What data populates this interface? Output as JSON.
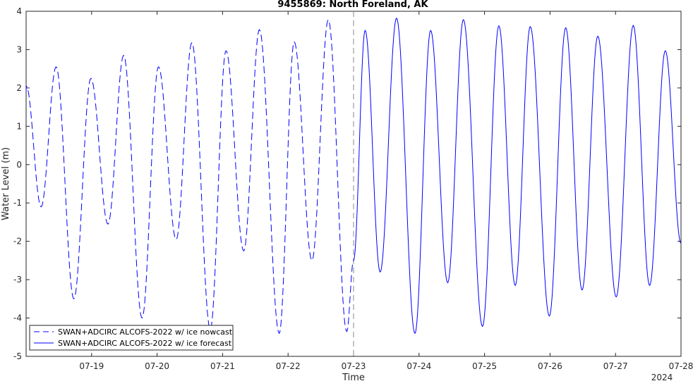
{
  "chart_data": {
    "type": "line",
    "title": "9455869: North Foreland, AK",
    "xlabel": "Time",
    "ylabel": "Water Level (m)",
    "year_label": "2024",
    "xlim": [
      "2024-07-18 00:00",
      "2024-07-28 00:00"
    ],
    "ylim": [
      -5,
      4
    ],
    "x_ticks": [
      "07-19",
      "07-20",
      "07-21",
      "07-22",
      "07-23",
      "07-24",
      "07-25",
      "07-26",
      "07-27",
      "07-28"
    ],
    "y_ticks": [
      "-5",
      "-4",
      "-3",
      "-2",
      "-1",
      "0",
      "1",
      "2",
      "3",
      "4"
    ],
    "grid": false,
    "forecast_start": "2024-07-23 00:00",
    "legend_position": "bottom-left",
    "series": [
      {
        "name": "SWAN+ADCIRC ALCOFS-2022 w/ ice nowcast",
        "style": "dashed",
        "color": "#0000ff",
        "extrema": [
          [
            "2024-07-18 00:00",
            1.9
          ],
          [
            "2024-07-18 00:03",
            2.05
          ],
          [
            "2024-07-18 05:30",
            -1.1
          ],
          [
            "2024-07-18 11:00",
            2.55
          ],
          [
            "2024-07-18 17:30",
            -3.5
          ],
          [
            "2024-07-18 23:45",
            2.25
          ],
          [
            "2024-07-19 06:00",
            -1.55
          ],
          [
            "2024-07-19 11:45",
            2.85
          ],
          [
            "2024-07-19 18:30",
            -4.0
          ],
          [
            "2024-07-20 00:30",
            2.55
          ],
          [
            "2024-07-20 07:00",
            -1.95
          ],
          [
            "2024-07-20 12:45",
            3.18
          ],
          [
            "2024-07-20 19:30",
            -4.3
          ],
          [
            "2024-07-21 01:15",
            2.97
          ],
          [
            "2024-07-21 07:45",
            -2.25
          ],
          [
            "2024-07-21 13:30",
            3.52
          ],
          [
            "2024-07-21 20:45",
            -4.4
          ],
          [
            "2024-07-22 02:15",
            3.2
          ],
          [
            "2024-07-22 08:45",
            -2.5
          ],
          [
            "2024-07-22 14:45",
            3.78
          ],
          [
            "2024-07-22 21:30",
            -4.35
          ],
          [
            "2024-07-23 00:00",
            -2.5
          ]
        ]
      },
      {
        "name": "SWAN+ADCIRC ALCOFS-2022 w/ ice forecast",
        "style": "solid",
        "color": "#0000ff",
        "extrema": [
          [
            "2024-07-23 00:00",
            -2.5
          ],
          [
            "2024-07-23 04:15",
            3.5
          ],
          [
            "2024-07-23 09:45",
            -2.8
          ],
          [
            "2024-07-23 15:45",
            3.82
          ],
          [
            "2024-07-23 22:30",
            -4.4
          ],
          [
            "2024-07-24 04:15",
            3.5
          ],
          [
            "2024-07-24 10:30",
            -3.08
          ],
          [
            "2024-07-24 16:15",
            3.78
          ],
          [
            "2024-07-24 23:15",
            -4.22
          ],
          [
            "2024-07-25 05:15",
            3.62
          ],
          [
            "2024-07-25 11:15",
            -3.15
          ],
          [
            "2024-07-25 16:45",
            3.6
          ],
          [
            "2024-07-25 23:45",
            -3.95
          ],
          [
            "2024-07-26 05:45",
            3.57
          ],
          [
            "2024-07-26 11:45",
            -3.27
          ],
          [
            "2024-07-26 17:30",
            3.35
          ],
          [
            "2024-07-27 00:15",
            -3.45
          ],
          [
            "2024-07-27 06:30",
            3.63
          ],
          [
            "2024-07-27 12:30",
            -3.15
          ],
          [
            "2024-07-27 18:15",
            2.97
          ],
          [
            "2024-07-28 00:00",
            -2.05
          ]
        ]
      }
    ]
  }
}
